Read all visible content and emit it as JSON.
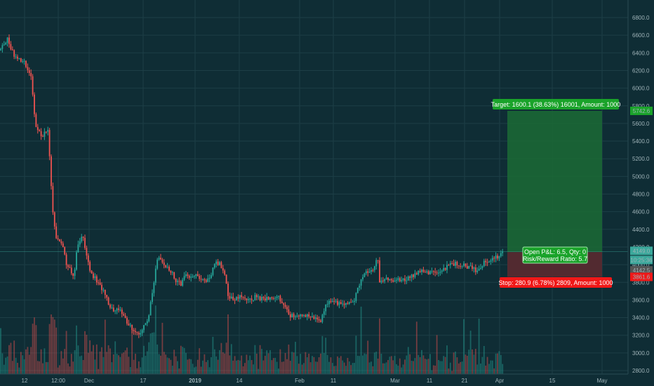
{
  "theme": {
    "background": "#0f2d35",
    "grid": "#1d3e46",
    "up": "#26a69a",
    "down": "#ef5350",
    "axis_text": "#9fb3b8",
    "target_fill": "#1b6b35",
    "stop_fill": "#5a2a30",
    "target_badge": "#1aa32a",
    "stop_badge": "#f01818",
    "price_badge": "#3aa89b",
    "entry_badge": "#555555"
  },
  "chart_data": {
    "type": "candlestick",
    "y_axis": {
      "min": 2800,
      "max": 6800,
      "ticks": [
        "2800.0",
        "3000.0",
        "3200.0",
        "3400.0",
        "3600.0",
        "3800.0",
        "4000.0",
        "4200.0",
        "4400.0",
        "4600.0",
        "4800.0",
        "5000.0",
        "5200.0",
        "5400.0",
        "5600.0",
        "5800.0",
        "6000.0",
        "6200.0",
        "6400.0",
        "6600.0",
        "6800.0"
      ]
    },
    "x_axis": {
      "ticks": [
        {
          "label": "12",
          "bold": false
        },
        {
          "label": "12:00",
          "bold": false
        },
        {
          "label": "Dec",
          "bold": false
        },
        {
          "label": "17",
          "bold": false
        },
        {
          "label": "2019",
          "bold": true
        },
        {
          "label": "14",
          "bold": false
        },
        {
          "label": "Feb",
          "bold": false
        },
        {
          "label": "11",
          "bold": false
        },
        {
          "label": "Mar",
          "bold": false
        },
        {
          "label": "11",
          "bold": false
        },
        {
          "label": "21",
          "bold": false
        },
        {
          "label": "Apr",
          "bold": false
        },
        {
          "label": "15",
          "bold": false
        },
        {
          "label": "May",
          "bold": false
        }
      ]
    },
    "price_anchors": [
      [
        0,
        6430
      ],
      [
        10,
        6560
      ],
      [
        20,
        6380
      ],
      [
        35,
        6300
      ],
      [
        45,
        6100
      ],
      [
        50,
        5600
      ],
      [
        60,
        5450
      ],
      [
        68,
        5560
      ],
      [
        75,
        4600
      ],
      [
        80,
        4300
      ],
      [
        88,
        4250
      ],
      [
        95,
        4000
      ],
      [
        100,
        3950
      ],
      [
        105,
        3850
      ],
      [
        110,
        4200
      ],
      [
        118,
        4350
      ],
      [
        123,
        4100
      ],
      [
        130,
        3900
      ],
      [
        140,
        3800
      ],
      [
        150,
        3650
      ],
      [
        160,
        3480
      ],
      [
        170,
        3500
      ],
      [
        180,
        3350
      ],
      [
        190,
        3250
      ],
      [
        200,
        3230
      ],
      [
        212,
        3400
      ],
      [
        218,
        3750
      ],
      [
        225,
        4100
      ],
      [
        235,
        4000
      ],
      [
        242,
        3950
      ],
      [
        250,
        3830
      ],
      [
        258,
        3780
      ],
      [
        265,
        3900
      ],
      [
        272,
        3850
      ],
      [
        280,
        3900
      ],
      [
        290,
        3800
      ],
      [
        300,
        3880
      ],
      [
        306,
        4010
      ],
      [
        312,
        4020
      ],
      [
        320,
        3900
      ],
      [
        326,
        3620
      ],
      [
        335,
        3620
      ],
      [
        345,
        3640
      ],
      [
        355,
        3600
      ],
      [
        365,
        3640
      ],
      [
        375,
        3600
      ],
      [
        385,
        3620
      ],
      [
        395,
        3640
      ],
      [
        405,
        3550
      ],
      [
        413,
        3420
      ],
      [
        425,
        3410
      ],
      [
        435,
        3430
      ],
      [
        445,
        3400
      ],
      [
        458,
        3370
      ],
      [
        465,
        3560
      ],
      [
        475,
        3580
      ],
      [
        490,
        3550
      ],
      [
        505,
        3590
      ],
      [
        515,
        3860
      ],
      [
        525,
        3940
      ],
      [
        533,
        3950
      ],
      [
        538,
        4110
      ],
      [
        541,
        3780
      ],
      [
        550,
        3830
      ],
      [
        565,
        3820
      ],
      [
        578,
        3830
      ],
      [
        588,
        3880
      ],
      [
        600,
        3920
      ],
      [
        615,
        3910
      ],
      [
        628,
        3920
      ],
      [
        638,
        3980
      ],
      [
        648,
        4010
      ],
      [
        660,
        3990
      ],
      [
        672,
        3960
      ],
      [
        682,
        3920
      ],
      [
        690,
        4030
      ],
      [
        700,
        4050
      ],
      [
        710,
        4100
      ],
      [
        718,
        4149
      ]
    ],
    "trade": {
      "entry": 4142.5,
      "target": 5742.6,
      "stop": 3861.6,
      "current": 4149.0,
      "start_x": 723,
      "end_x": 858
    }
  },
  "labels": {
    "target": "Target: 1600.1 (38.63%) 16001, Amount: 1000",
    "stop": "Stop: 280.9 (6.78%) 2809, Amount: 1000",
    "pnl": "Open P&L: 6.5, Qty: 0",
    "risk_reward": "Risk/Reward Ratio: 5.7",
    "price_badge": "4149.0",
    "time_badge": "10:25:36",
    "entry_badge": "4142.5",
    "target_badge": "5742.6",
    "stop_badge": "3861.6"
  }
}
